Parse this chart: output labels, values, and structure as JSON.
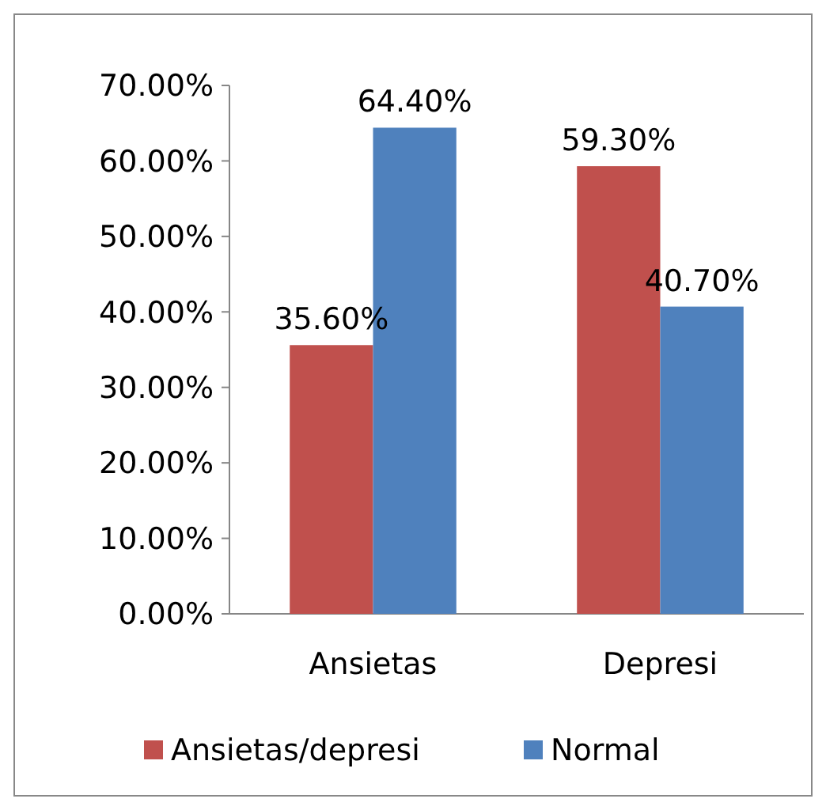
{
  "chart_data": {
    "type": "bar",
    "categories": [
      "Ansietas",
      "Depresi"
    ],
    "series": [
      {
        "name": "Ansietas/depresi",
        "color": "#c0504d",
        "values": [
          35.6,
          59.3
        ],
        "value_labels": [
          "35.60%",
          "59.30%"
        ]
      },
      {
        "name": "Normal",
        "color": "#4f81bd",
        "values": [
          64.4,
          40.7
        ],
        "value_labels": [
          "64.40%",
          "40.70%"
        ]
      }
    ],
    "ylim": [
      0,
      70
    ],
    "yticks": [
      {
        "value": 0,
        "label": "0.00%"
      },
      {
        "value": 10,
        "label": "10.00%"
      },
      {
        "value": 20,
        "label": "20.00%"
      },
      {
        "value": 30,
        "label": "30.00%"
      },
      {
        "value": 40,
        "label": "40.00%"
      },
      {
        "value": 50,
        "label": "50.00%"
      },
      {
        "value": 60,
        "label": "60.00%"
      },
      {
        "value": 70,
        "label": "70.00%"
      }
    ],
    "grid": false,
    "legend": "bottom"
  }
}
